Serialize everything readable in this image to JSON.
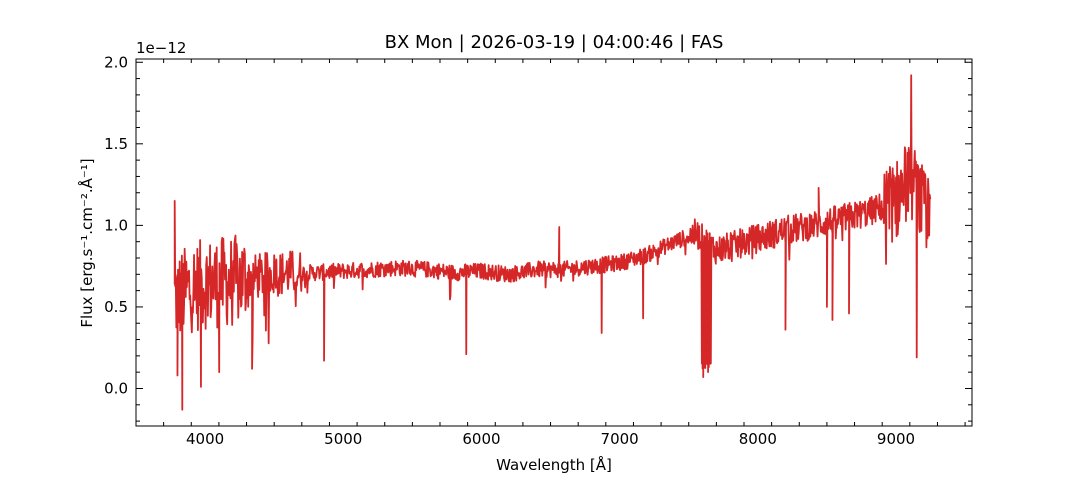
{
  "chart_data": {
    "type": "line",
    "title": "BX Mon | 2026-03-19 | 04:00:46 | FAS",
    "xlabel": "Wavelength [Å]",
    "ylabel": "Flux [erg.s⁻¹.cm⁻².Å⁻¹]",
    "y_offset_label": "1e−12",
    "y_scale": 1e-12,
    "xlim": [
      3500,
      9550
    ],
    "ylim": [
      -0.23,
      2.02
    ],
    "x_ticks": [
      4000,
      5000,
      6000,
      7000,
      8000,
      9000
    ],
    "x_tick_labels": [
      "4000",
      "5000",
      "6000",
      "7000",
      "8000",
      "9000"
    ],
    "y_ticks": [
      0.0,
      0.5,
      1.0,
      1.5,
      2.0
    ],
    "y_tick_labels": [
      "0.0",
      "0.5",
      "1.0",
      "1.5",
      "2.0"
    ],
    "grid": false,
    "series": [
      {
        "color": "#d62728",
        "x_start": 3780,
        "x_end": 9250,
        "continuum": [
          [
            3780,
            0.55
          ],
          [
            3900,
            0.62
          ],
          [
            4000,
            0.64
          ],
          [
            4200,
            0.66
          ],
          [
            4400,
            0.69
          ],
          [
            4600,
            0.71
          ],
          [
            4800,
            0.71
          ],
          [
            5000,
            0.72
          ],
          [
            5200,
            0.73
          ],
          [
            5400,
            0.74
          ],
          [
            5600,
            0.73
          ],
          [
            5800,
            0.71
          ],
          [
            6000,
            0.72
          ],
          [
            6200,
            0.7
          ],
          [
            6400,
            0.73
          ],
          [
            6600,
            0.73
          ],
          [
            6800,
            0.75
          ],
          [
            7000,
            0.77
          ],
          [
            7200,
            0.82
          ],
          [
            7400,
            0.9
          ],
          [
            7550,
            0.95
          ],
          [
            7700,
            0.85
          ],
          [
            7800,
            0.87
          ],
          [
            8000,
            0.92
          ],
          [
            8200,
            0.97
          ],
          [
            8400,
            1.0
          ],
          [
            8600,
            1.04
          ],
          [
            8800,
            1.08
          ],
          [
            9000,
            1.15
          ],
          [
            9100,
            1.3
          ],
          [
            9250,
            1.0
          ]
        ],
        "features": [
          {
            "x": 3780,
            "y": 1.15
          },
          {
            "x": 3800,
            "y": 0.08
          },
          {
            "x": 3835,
            "y": -0.13
          },
          {
            "x": 3970,
            "y": 0.01
          },
          {
            "x": 4102,
            "y": 0.1
          },
          {
            "x": 4120,
            "y": 0.9
          },
          {
            "x": 4340,
            "y": 0.12
          },
          {
            "x": 4861,
            "y": 0.17
          },
          {
            "x": 5890,
            "y": 0.21
          },
          {
            "x": 6563,
            "y": 0.99
          },
          {
            "x": 6870,
            "y": 0.34
          },
          {
            "x": 7170,
            "y": 0.43
          },
          {
            "x": 7605,
            "y": 0.07
          },
          {
            "x": 7640,
            "y": 0.1
          },
          {
            "x": 8200,
            "y": 0.36
          },
          {
            "x": 8440,
            "y": 1.23
          },
          {
            "x": 8500,
            "y": 0.5
          },
          {
            "x": 8540,
            "y": 0.42
          },
          {
            "x": 8660,
            "y": 0.46
          },
          {
            "x": 9110,
            "y": 1.92
          },
          {
            "x": 9150,
            "y": 0.19
          }
        ]
      }
    ]
  }
}
